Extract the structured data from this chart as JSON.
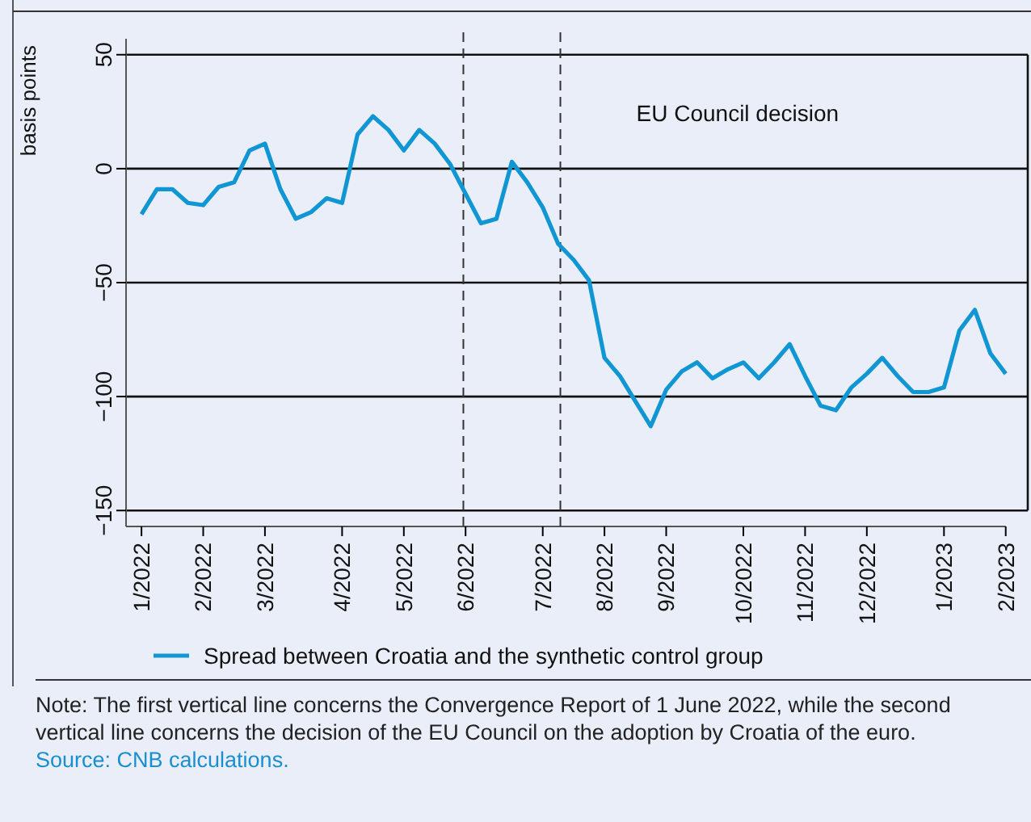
{
  "chart_data": {
    "type": "line",
    "ylabel": "basis points",
    "x": [
      "2022-01-06",
      "2022-01-13",
      "2022-01-20",
      "2022-01-27",
      "2022-02-03",
      "2022-02-10",
      "2022-02-17",
      "2022-02-24",
      "2022-03-03",
      "2022-03-10",
      "2022-03-17",
      "2022-03-24",
      "2022-03-31",
      "2022-04-07",
      "2022-04-14",
      "2022-04-21",
      "2022-04-28",
      "2022-05-05",
      "2022-05-12",
      "2022-05-19",
      "2022-05-26",
      "2022-06-02",
      "2022-06-09",
      "2022-06-16",
      "2022-06-23",
      "2022-06-30",
      "2022-07-07",
      "2022-07-14",
      "2022-07-21",
      "2022-07-28",
      "2022-08-04",
      "2022-08-11",
      "2022-08-18",
      "2022-08-25",
      "2022-09-01",
      "2022-09-08",
      "2022-09-15",
      "2022-09-22",
      "2022-09-29",
      "2022-10-06",
      "2022-10-13",
      "2022-10-20",
      "2022-10-27",
      "2022-11-03",
      "2022-11-10",
      "2022-11-17",
      "2022-11-24",
      "2022-12-01",
      "2022-12-08",
      "2022-12-15",
      "2022-12-22",
      "2022-12-29",
      "2023-01-05",
      "2023-01-12",
      "2023-01-19",
      "2023-01-26",
      "2023-02-02"
    ],
    "series": [
      {
        "name": "Spread between Croatia and the synthetic control group",
        "color": "#1196d4",
        "values": [
          -20,
          -9,
          -9,
          -15,
          -16,
          -8,
          -6,
          8,
          11,
          -9,
          -22,
          -19,
          -13,
          -15,
          15,
          23,
          17,
          8,
          17,
          11,
          2,
          -11,
          -24,
          -22,
          3,
          -6,
          -17,
          -33,
          -40,
          -49,
          -83,
          -91,
          -102,
          -113,
          -97,
          -89,
          -85,
          -92,
          -88,
          -85,
          -92,
          -85,
          -77,
          -91,
          -104,
          -106,
          -96,
          -90,
          -83,
          -91,
          -98,
          -98,
          -96,
          -71,
          -62,
          -81,
          -90
        ]
      }
    ],
    "xlim": [
      "2021-12-30",
      "2023-02-12"
    ],
    "xticks": [
      {
        "value": "2022-01-06",
        "label": "1/2022"
      },
      {
        "value": "2022-02-03",
        "label": "2/2022"
      },
      {
        "value": "2022-03-03",
        "label": "3/2022"
      },
      {
        "value": "2022-04-07",
        "label": "4/2022"
      },
      {
        "value": "2022-05-05",
        "label": "5/2022"
      },
      {
        "value": "2022-06-02",
        "label": "6/2022"
      },
      {
        "value": "2022-07-07",
        "label": "7/2022"
      },
      {
        "value": "2022-08-04",
        "label": "8/2022"
      },
      {
        "value": "2022-09-01",
        "label": "9/2022"
      },
      {
        "value": "2022-10-06",
        "label": "10/2022"
      },
      {
        "value": "2022-11-03",
        "label": "11/2022"
      },
      {
        "value": "2022-12-01",
        "label": "12/2022"
      },
      {
        "value": "2023-01-05",
        "label": "1/2023"
      },
      {
        "value": "2023-02-02",
        "label": "2/2023"
      }
    ],
    "ylim": [
      -157,
      57
    ],
    "yticks": [
      {
        "value": -150,
        "label": "−150"
      },
      {
        "value": -100,
        "label": "−100"
      },
      {
        "value": -50,
        "label": "−50"
      },
      0,
      50
    ],
    "grid": "y",
    "legend": "bottom",
    "ref_lines": [
      {
        "axis": "x",
        "value": "2022-06-01",
        "line_style": "dashed"
      },
      {
        "axis": "x",
        "value": "2022-07-15",
        "label": "EU Council decision",
        "line_style": "dashed"
      }
    ],
    "annotations": [
      "Note: The first vertical line concerns the Convergence Report of 1 June 2022, while the second vertical line concerns the decision of the EU Council on the adoption by Croatia of the euro.",
      "Source: CNB calculations."
    ]
  }
}
